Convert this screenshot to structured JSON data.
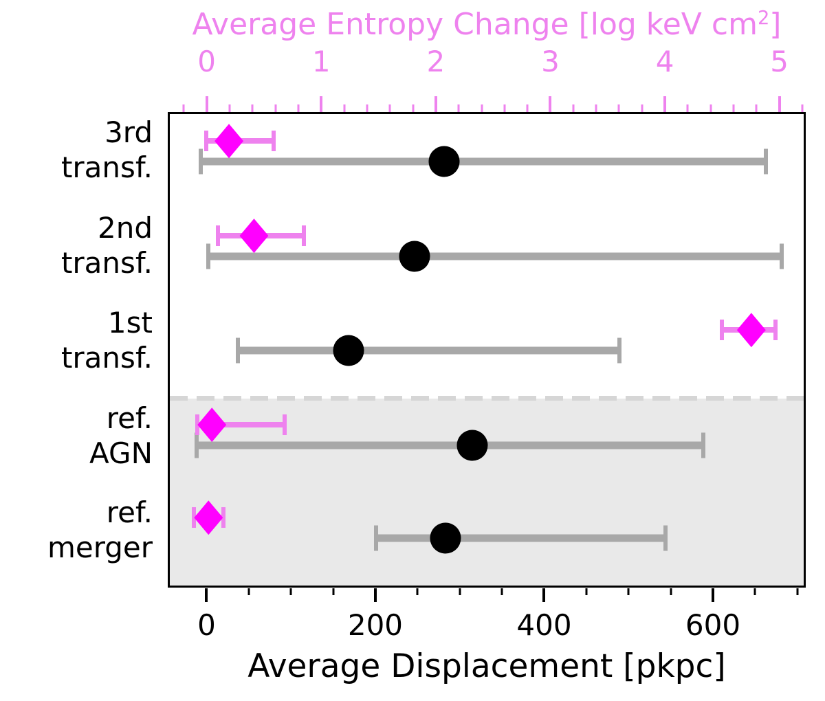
{
  "colors": {
    "top_axis": "#ee82ee",
    "magenta_marker": "#ff00ff",
    "magenta_error": "#ee82ee",
    "gray_error": "#a8a8a8",
    "black_marker": "#000000",
    "shade_fill": "#e9e9e9",
    "divider_dash": "#d6d6d6",
    "bottom_axis": "#000000"
  },
  "top_title_parts": {
    "main": "Average Entropy Change [log keV cm",
    "sup": "2",
    "close": "]"
  },
  "chart_data": {
    "type": "scatter",
    "subtype": "horizontal-dot-errorbar",
    "title": "",
    "categories": [
      "3rd transf.",
      "2nd transf.",
      "1st transf.",
      "ref. AGN",
      "ref. merger"
    ],
    "category_label_lines": [
      [
        "3rd",
        "transf."
      ],
      [
        "2nd",
        "transf."
      ],
      [
        "1st",
        "transf."
      ],
      [
        "ref.",
        "AGN"
      ],
      [
        "ref.",
        "merger"
      ]
    ],
    "row_centers_pct": [
      7.9,
      28.0,
      48.0,
      68.1,
      87.8
    ],
    "series": [
      {
        "name": "Average Displacement",
        "axis": "bottom",
        "marker": "circle",
        "x": [
          281,
          246,
          167,
          315,
          283
        ],
        "x_err_low": [
          -9,
          0,
          35,
          -14,
          200
        ],
        "x_err_high": [
          665,
          684,
          490,
          590,
          545
        ]
      },
      {
        "name": "Average Entropy Change",
        "axis": "top",
        "marker": "diamond",
        "x": [
          0.18,
          0.4,
          4.77,
          0.03,
          0.0
        ],
        "x_err_low": [
          -0.02,
          0.08,
          4.51,
          -0.1,
          -0.13
        ],
        "x_err_high": [
          0.57,
          0.84,
          4.98,
          0.67,
          0.13
        ]
      }
    ],
    "bottom_axis": {
      "label": "Average Displacement [pkpc]",
      "tick_values": [
        0,
        200,
        400,
        600
      ],
      "tick_labels": [
        "0",
        "200",
        "400",
        "600"
      ],
      "minor_step": 50,
      "range": [
        -46,
        710
      ]
    },
    "top_axis": {
      "label": "Average Entropy Change [log keV cm²]",
      "tick_values": [
        0,
        1,
        2,
        3,
        4,
        5
      ],
      "tick_labels": [
        "0",
        "1",
        "2",
        "3",
        "4",
        "5"
      ],
      "minor_step": 0.2,
      "range": [
        -0.34,
        5.23
      ]
    },
    "shaded_band": {
      "start_pct": 60.3,
      "covers_categories": [
        "ref. AGN",
        "ref. merger"
      ],
      "divider": "dashed"
    },
    "grid": false,
    "legend": null
  }
}
